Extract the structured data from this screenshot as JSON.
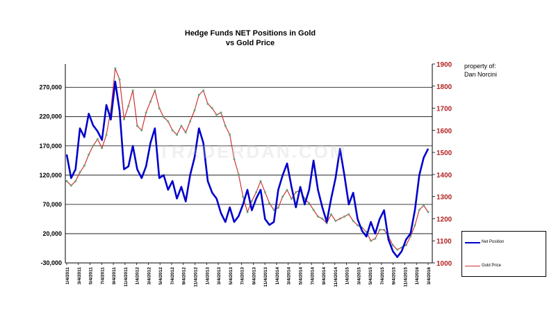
{
  "chart_data": {
    "type": "line",
    "title": "Hedge Funds NET Positions in Gold",
    "subtitle": "vs Gold Price",
    "credit_line1": "property of:",
    "credit_line2": "Dan Norcini",
    "watermark": "TRADERDAN.COM",
    "left_axis": {
      "ticks": [
        -30000,
        20000,
        70000,
        120000,
        170000,
        220000,
        270000
      ],
      "tick_labels": [
        "-30,000",
        "20,000",
        "70,000",
        "120,000",
        "170,000",
        "220,000",
        "270,000"
      ],
      "range": [
        -30000,
        310000
      ],
      "color": "#000000"
    },
    "right_axis": {
      "ticks": [
        1000,
        1100,
        1200,
        1300,
        1400,
        1500,
        1600,
        1700,
        1800,
        1900
      ],
      "tick_labels": [
        "1000",
        "1100",
        "1200",
        "1300",
        "1400",
        "1500",
        "1600",
        "1700",
        "1800",
        "1900"
      ],
      "range": [
        1000,
        1900
      ],
      "color": "#b22222"
    },
    "x_tick_labels": [
      "1/4/2011",
      "3/4/2011",
      "5/4/2011",
      "7/4/2011",
      "9/4/2011",
      "11/4/2011",
      "1/4/2012",
      "3/4/2012",
      "5/4/2012",
      "7/4/2012",
      "9/4/2012",
      "11/4/2012",
      "1/4/2013",
      "3/4/2013",
      "5/4/2013",
      "7/4/2013",
      "9/4/2013",
      "11/4/2013",
      "1/4/2014",
      "3/4/2014",
      "5/4/2014",
      "7/4/2014",
      "9/4/2014",
      "11/4/2014",
      "1/4/2015",
      "3/4/2015",
      "5/4/2015",
      "7/4/2015",
      "9/4/2015",
      "11/4/2015",
      "1/4/2016",
      "3/4/2016"
    ],
    "series": [
      {
        "name": "Net Position",
        "axis": "left",
        "color": "#0000cc",
        "values": [
          155000,
          115000,
          130000,
          200000,
          185000,
          225000,
          205000,
          195000,
          180000,
          240000,
          215000,
          280000,
          230000,
          130000,
          135000,
          170000,
          130000,
          115000,
          135000,
          175000,
          200000,
          115000,
          120000,
          95000,
          110000,
          80000,
          100000,
          75000,
          120000,
          150000,
          200000,
          175000,
          110000,
          90000,
          80000,
          55000,
          40000,
          65000,
          40000,
          50000,
          70000,
          95000,
          60000,
          80000,
          95000,
          45000,
          35000,
          40000,
          95000,
          120000,
          140000,
          100000,
          65000,
          100000,
          70000,
          95000,
          145000,
          95000,
          65000,
          40000,
          80000,
          115000,
          165000,
          120000,
          70000,
          90000,
          45000,
          25000,
          15000,
          40000,
          20000,
          45000,
          60000,
          10000,
          -10000,
          -20000,
          -10000,
          10000,
          20000,
          60000,
          120000,
          150000,
          165000
        ]
      },
      {
        "name": "Gold Price",
        "axis": "right",
        "color": "#cc3333",
        "values": [
          1370,
          1350,
          1370,
          1410,
          1440,
          1490,
          1530,
          1560,
          1520,
          1580,
          1690,
          1880,
          1830,
          1650,
          1710,
          1780,
          1620,
          1600,
          1680,
          1730,
          1780,
          1700,
          1660,
          1640,
          1600,
          1580,
          1620,
          1590,
          1640,
          1690,
          1760,
          1780,
          1720,
          1700,
          1670,
          1680,
          1620,
          1580,
          1470,
          1400,
          1300,
          1230,
          1280,
          1320,
          1370,
          1320,
          1270,
          1240,
          1250,
          1300,
          1330,
          1290,
          1320,
          1330,
          1290,
          1270,
          1240,
          1210,
          1200,
          1180,
          1220,
          1190,
          1200,
          1210,
          1220,
          1190,
          1170,
          1160,
          1140,
          1100,
          1110,
          1150,
          1150,
          1120,
          1080,
          1060,
          1070,
          1080,
          1120,
          1170,
          1240,
          1260,
          1230
        ]
      }
    ]
  }
}
